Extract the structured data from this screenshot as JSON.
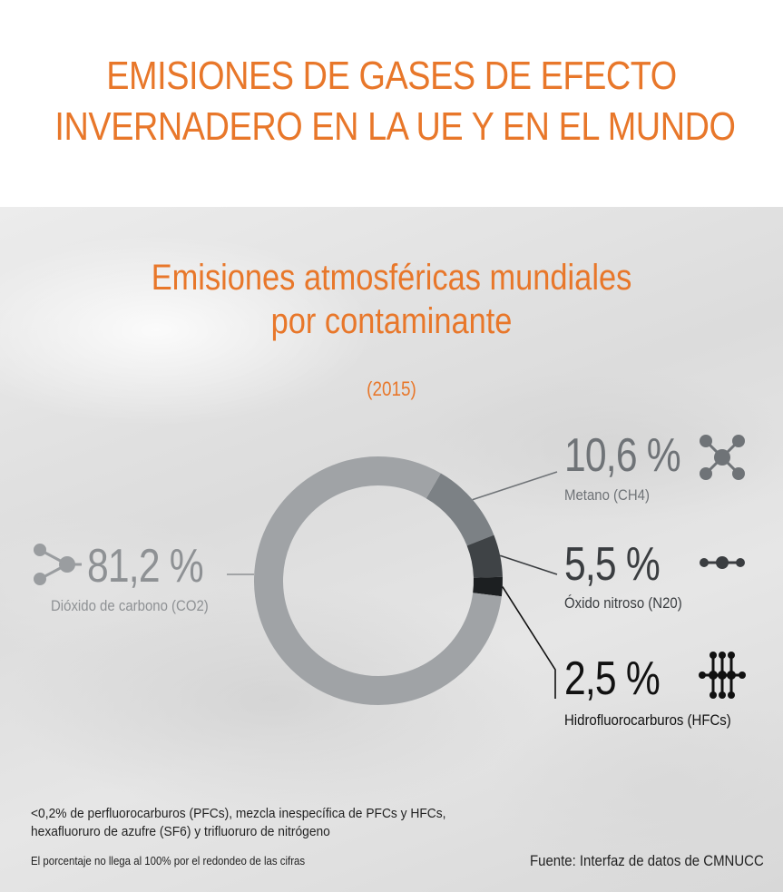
{
  "header": {
    "title_line1": "EMISIONES DE GASES DE EFECTO",
    "title_line2": "INVERNADERO EN LA UE Y EN EL MUNDO"
  },
  "chart_data": {
    "type": "pie",
    "variant": "donut",
    "title_line1": "Emisiones atmosféricas mundiales",
    "title_line2": "por contaminante",
    "subtitle": "(2015)",
    "series": [
      {
        "name": "Dióxido de carbono (CO2)",
        "value": 81.2,
        "display": "81,2 %",
        "color": "#a0a3a6",
        "icon": "co2-molecule-icon"
      },
      {
        "name": "Metano (CH4)",
        "value": 10.6,
        "display": "10,6 %",
        "color": "#7c8185",
        "icon": "methane-molecule-icon"
      },
      {
        "name": "Óxido nitroso (N20)",
        "value": 5.5,
        "display": "5,5 %",
        "color": "#3f4346",
        "icon": "nitrous-oxide-molecule-icon"
      },
      {
        "name": "Hidrofluorocarburos (HFCs)",
        "value": 2.5,
        "display": "2,5 %",
        "color": "#1c1f21",
        "icon": "hfc-molecule-icon"
      }
    ]
  },
  "footer": {
    "note": "<0,2%  de perfluorocarburos (PFCs), mezcla inespecífica de PFCs y HFCs, hexafluoruro de azufre (SF6) y trifluoruro de nitrógeno",
    "rounding_note": "El porcentaje no llega al 100% por el redondeo de las cifras",
    "source": "Fuente: Interfaz de datos de CMNUCC"
  },
  "colors": {
    "accent": "#e8772a",
    "co2_text": "#8e9194",
    "ch4_text": "#6f7377",
    "n2o_text": "#3a3d40",
    "hfc_text": "#111111"
  }
}
